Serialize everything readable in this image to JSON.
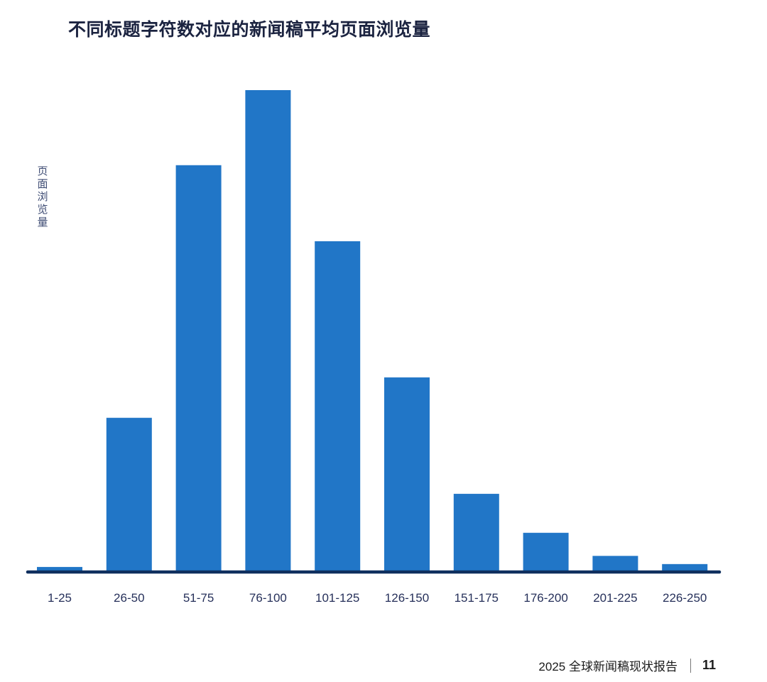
{
  "chart_data": {
    "type": "bar",
    "title": "不同标题字符数对应的新闻稿平均页面浏览量",
    "xlabel": "",
    "ylabel": "页面浏览量",
    "categories": [
      "1-25",
      "26-50",
      "51-75",
      "76-100",
      "101-125",
      "126-150",
      "151-175",
      "176-200",
      "201-225",
      "226-250"
    ],
    "values": [
      0.9,
      31.9,
      84.4,
      100,
      68.6,
      40.3,
      16.1,
      8.0,
      3.2,
      1.5
    ],
    "value_note_visible": false,
    "ylim": [
      0,
      100
    ],
    "grid": false,
    "legend": "none",
    "colors": {
      "bar": "#2176c7",
      "axis": "#0f2f5e",
      "title": "#1b2340"
    }
  },
  "footer": {
    "report": "2025 全球新闻稿现状报告",
    "page": "11"
  }
}
